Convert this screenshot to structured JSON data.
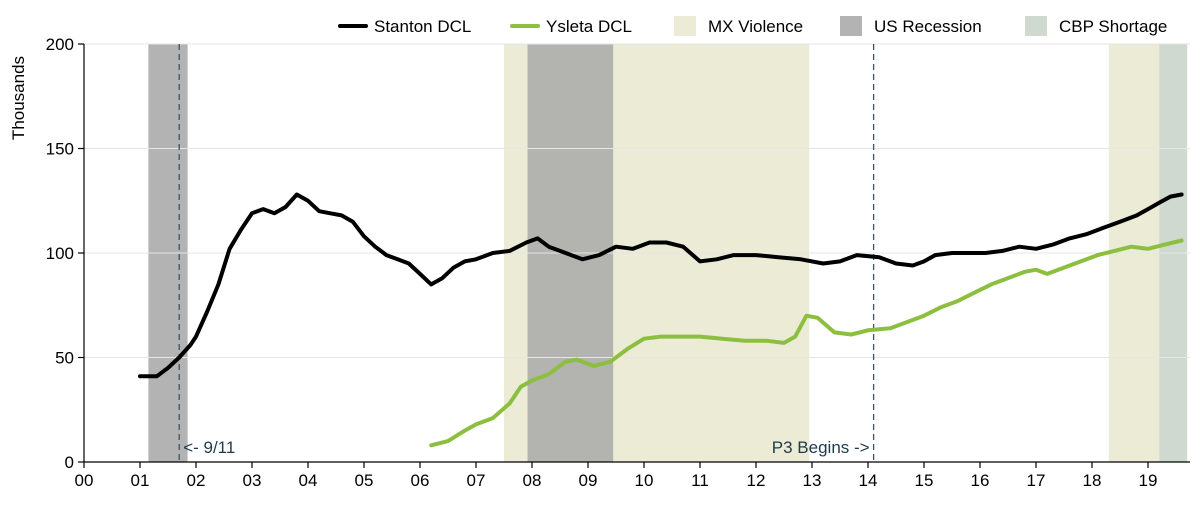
{
  "chart_data": {
    "type": "line",
    "title": "",
    "xlabel": "",
    "ylabel": "Thousands",
    "xlim": [
      0,
      19.75
    ],
    "ylim": [
      0,
      200
    ],
    "x_ticks": [
      0,
      1,
      2,
      3,
      4,
      5,
      6,
      7,
      8,
      9,
      10,
      11,
      12,
      13,
      14,
      15,
      16,
      17,
      18,
      19
    ],
    "x_tick_labels": [
      "00",
      "01",
      "02",
      "03",
      "04",
      "05",
      "06",
      "07",
      "08",
      "09",
      "10",
      "11",
      "12",
      "13",
      "14",
      "15",
      "16",
      "17",
      "18",
      "19"
    ],
    "y_ticks": [
      0,
      50,
      100,
      150,
      200
    ],
    "y_tick_labels": [
      "0",
      "50",
      "100",
      "150",
      "200"
    ],
    "grid": "horizontal",
    "legend_position": "top",
    "shaded_regions": [
      {
        "name": "MX Violence",
        "start": 7.5,
        "end": 12.95,
        "color": "#ecebd6"
      },
      {
        "name": "MX Violence",
        "start": 18.3,
        "end": 19.2,
        "color": "#ecebd6"
      },
      {
        "name": "US Recession",
        "start": 1.15,
        "end": 1.85,
        "color": "#b3b3b3"
      },
      {
        "name": "US Recession",
        "start": 7.92,
        "end": 9.45,
        "color": "#b3b3b0"
      },
      {
        "name": "CBP Shortage",
        "start": 19.2,
        "end": 19.7,
        "color": "#cfd9cf"
      }
    ],
    "vertical_lines": [
      {
        "x": 1.7,
        "label": "<- 9/11",
        "color": "#3b5468"
      },
      {
        "x": 14.1,
        "label": "P3 Begins ->",
        "color": "#3b5468"
      }
    ],
    "legend": [
      {
        "label": "Stanton DCL",
        "kind": "line",
        "color": "#000000"
      },
      {
        "label": "Ysleta DCL",
        "kind": "line",
        "color": "#8cbf3f"
      },
      {
        "label": "MX Violence",
        "kind": "box",
        "color": "#ecebd6"
      },
      {
        "label": "US Recession",
        "kind": "box",
        "color": "#b3b3b3"
      },
      {
        "label": "CBP Shortage",
        "kind": "box",
        "color": "#cfd9cf"
      }
    ],
    "series": [
      {
        "name": "Stanton DCL",
        "color": "#000000",
        "x": [
          1.0,
          1.3,
          1.5,
          1.7,
          1.9,
          2.0,
          2.2,
          2.4,
          2.6,
          2.8,
          3.0,
          3.2,
          3.4,
          3.6,
          3.8,
          4.0,
          4.2,
          4.4,
          4.6,
          4.8,
          5.0,
          5.2,
          5.4,
          5.6,
          5.8,
          6.0,
          6.2,
          6.4,
          6.6,
          6.8,
          7.0,
          7.3,
          7.6,
          7.9,
          8.1,
          8.3,
          8.6,
          8.9,
          9.2,
          9.5,
          9.8,
          10.1,
          10.4,
          10.7,
          11.0,
          11.3,
          11.6,
          12.0,
          12.4,
          12.8,
          13.2,
          13.5,
          13.8,
          14.2,
          14.5,
          14.8,
          15.0,
          15.2,
          15.5,
          15.8,
          16.1,
          16.4,
          16.7,
          17.0,
          17.3,
          17.6,
          17.9,
          18.2,
          18.5,
          18.8,
          19.0,
          19.2,
          19.4,
          19.6
        ],
        "values": [
          41,
          41,
          45,
          50,
          56,
          60,
          72,
          85,
          102,
          111,
          119,
          121,
          119,
          122,
          128,
          125,
          120,
          119,
          118,
          115,
          108,
          103,
          99,
          97,
          95,
          90,
          85,
          88,
          93,
          96,
          97,
          100,
          101,
          105,
          107,
          103,
          100,
          97,
          99,
          103,
          102,
          105,
          105,
          103,
          96,
          97,
          99,
          99,
          98,
          97,
          95,
          96,
          99,
          98,
          95,
          94,
          96,
          99,
          100,
          100,
          100,
          101,
          103,
          102,
          104,
          107,
          109,
          112,
          115,
          118,
          121,
          124,
          127,
          128
        ]
      },
      {
        "name": "Ysleta DCL",
        "color": "#8cbf3f",
        "x": [
          6.2,
          6.5,
          6.8,
          7.0,
          7.3,
          7.6,
          7.8,
          8.0,
          8.3,
          8.6,
          8.8,
          9.1,
          9.4,
          9.7,
          10.0,
          10.3,
          10.6,
          11.0,
          11.4,
          11.8,
          12.2,
          12.5,
          12.7,
          12.9,
          13.1,
          13.4,
          13.7,
          14.0,
          14.4,
          14.7,
          15.0,
          15.3,
          15.6,
          15.9,
          16.2,
          16.5,
          16.8,
          17.0,
          17.2,
          17.5,
          17.8,
          18.1,
          18.4,
          18.7,
          19.0,
          19.3,
          19.6
        ],
        "values": [
          8,
          10,
          15,
          18,
          21,
          28,
          36,
          39,
          42,
          48,
          49,
          46,
          48,
          54,
          59,
          60,
          60,
          60,
          59,
          58,
          58,
          57,
          60,
          70,
          69,
          62,
          61,
          63,
          64,
          67,
          70,
          74,
          77,
          81,
          85,
          88,
          91,
          92,
          90,
          93,
          96,
          99,
          101,
          103,
          102,
          104,
          106
        ]
      }
    ]
  }
}
